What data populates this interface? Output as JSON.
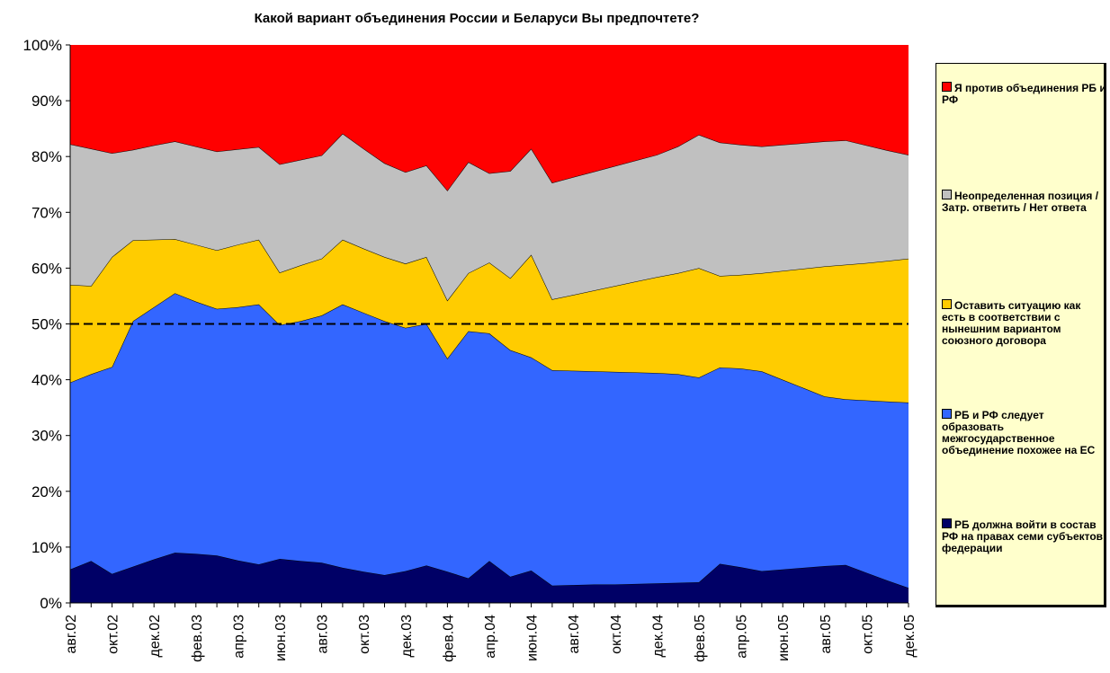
{
  "chart_data": {
    "type": "stacked_area",
    "title": "Какой вариант объединения России и Беларуси Вы предпочтете?",
    "categories": [
      "авг.02",
      null,
      "окт.02",
      null,
      "дек.02",
      null,
      "фев.03",
      null,
      "апр.03",
      null,
      "июн.03",
      null,
      "авг.03",
      null,
      "окт.03",
      null,
      "дек.03",
      null,
      "фев.04",
      null,
      "апр.04",
      null,
      "июн.04",
      null,
      "авг.04",
      null,
      "окт.04",
      null,
      "дек.04",
      null,
      "фев.05",
      null,
      "апр.05",
      null,
      "июн.05",
      null,
      "авг.05",
      null,
      "окт.05",
      null,
      "дек.05"
    ],
    "series": [
      {
        "name": "РБ должна войти в состав РФ на правах семи субъектов федерации",
        "color": "#000066",
        "values": [
          6,
          7.5,
          5.2,
          6.5,
          7.8,
          9,
          8.8,
          8.5,
          7.6,
          6.9,
          7.9,
          7.5,
          7.2,
          6.3,
          5.6,
          5,
          5.7,
          6.7,
          5.6,
          4.4,
          7.5,
          4.7,
          5.8,
          3.1,
          3.2,
          3.3,
          3.3,
          3.4,
          3.5,
          3.6,
          3.7,
          7,
          6.4,
          5.7,
          6,
          6.3,
          6.6,
          6.8,
          5.4,
          4,
          2.7
        ]
      },
      {
        "name": "РБ и РФ следует образовать межгосударственное объединение похожее на ЕС",
        "color": "#3366ff",
        "values": [
          33.5,
          33.5,
          37.1,
          44,
          45.2,
          46.5,
          45.2,
          44.2,
          45.4,
          46.6,
          41.9,
          43,
          44.3,
          47.2,
          46.4,
          45.5,
          43.6,
          43.3,
          38.2,
          44.3,
          40.8,
          40.6,
          38.2,
          38.6,
          38.4,
          38.2,
          38.1,
          37.9,
          37.7,
          37.4,
          36.7,
          35.2,
          35.6,
          35.8,
          34,
          32.2,
          30.4,
          29.7,
          30.9,
          32.1,
          33.2
        ]
      },
      {
        "name": "Оставить ситуацию как есть в соответствии с нынешним вариантом союзного договора",
        "color": "#ffcc00",
        "values": [
          17.5,
          15.8,
          19.7,
          14.5,
          12.1,
          9.7,
          10.2,
          10.5,
          11.2,
          11.6,
          9.4,
          10,
          10.2,
          11.6,
          11.5,
          11.5,
          11.5,
          12,
          10.4,
          10.4,
          12.7,
          12.9,
          18.4,
          12.7,
          13.6,
          14.5,
          15.4,
          16.3,
          17.2,
          18.1,
          19.6,
          16.4,
          16.8,
          17.6,
          19.5,
          21.4,
          23.3,
          24.1,
          24.6,
          25.2,
          25.8
        ]
      },
      {
        "name": "Неопределенная позиция /Затр. ответить / Нет ответа",
        "color": "#c0c0c0",
        "values": [
          25.2,
          24.6,
          18.6,
          16.2,
          16.9,
          17.5,
          17.6,
          17.7,
          17.1,
          16.6,
          19.4,
          18.9,
          18.5,
          19,
          17.9,
          16.8,
          16.4,
          16.4,
          19.7,
          19.9,
          16,
          19.2,
          19,
          20.9,
          21.1,
          21.3,
          21.5,
          21.7,
          21.9,
          22.7,
          23.9,
          23.9,
          23.3,
          22.7,
          22.6,
          22.5,
          22.4,
          22.3,
          21.1,
          19.8,
          18.6
        ]
      },
      {
        "name": "Я против объединения РБ и РФ",
        "color": "#ff0000",
        "values": [
          17.8,
          18.6,
          19.4,
          18.8,
          18,
          17.3,
          18.2,
          19.1,
          18.7,
          18.3,
          21.4,
          20.6,
          19.8,
          15.9,
          18.6,
          21.2,
          22.8,
          21.6,
          26.1,
          21,
          23,
          22.6,
          18.6,
          24.7,
          23.7,
          22.7,
          21.7,
          20.7,
          19.7,
          18.2,
          16.1,
          17.5,
          17.9,
          18.2,
          17.9,
          17.6,
          17.3,
          17.1,
          18,
          18.9,
          19.7
        ]
      }
    ],
    "ylim": [
      0,
      100
    ],
    "yticks": [
      {
        "value": 0,
        "label": "0%"
      },
      {
        "value": 10,
        "label": "10%"
      },
      {
        "value": 20,
        "label": "20%"
      },
      {
        "value": 30,
        "label": "30%"
      },
      {
        "value": 40,
        "label": "40%"
      },
      {
        "value": 50,
        "label": "50%"
      },
      {
        "value": 60,
        "label": "60%"
      },
      {
        "value": 70,
        "label": "70%"
      },
      {
        "value": 80,
        "label": "80%"
      },
      {
        "value": 90,
        "label": "90%"
      },
      {
        "value": 100,
        "label": "100%"
      }
    ],
    "reference_line": {
      "value": 50,
      "style": "dashed",
      "color": "#000000"
    },
    "legend": "right"
  }
}
